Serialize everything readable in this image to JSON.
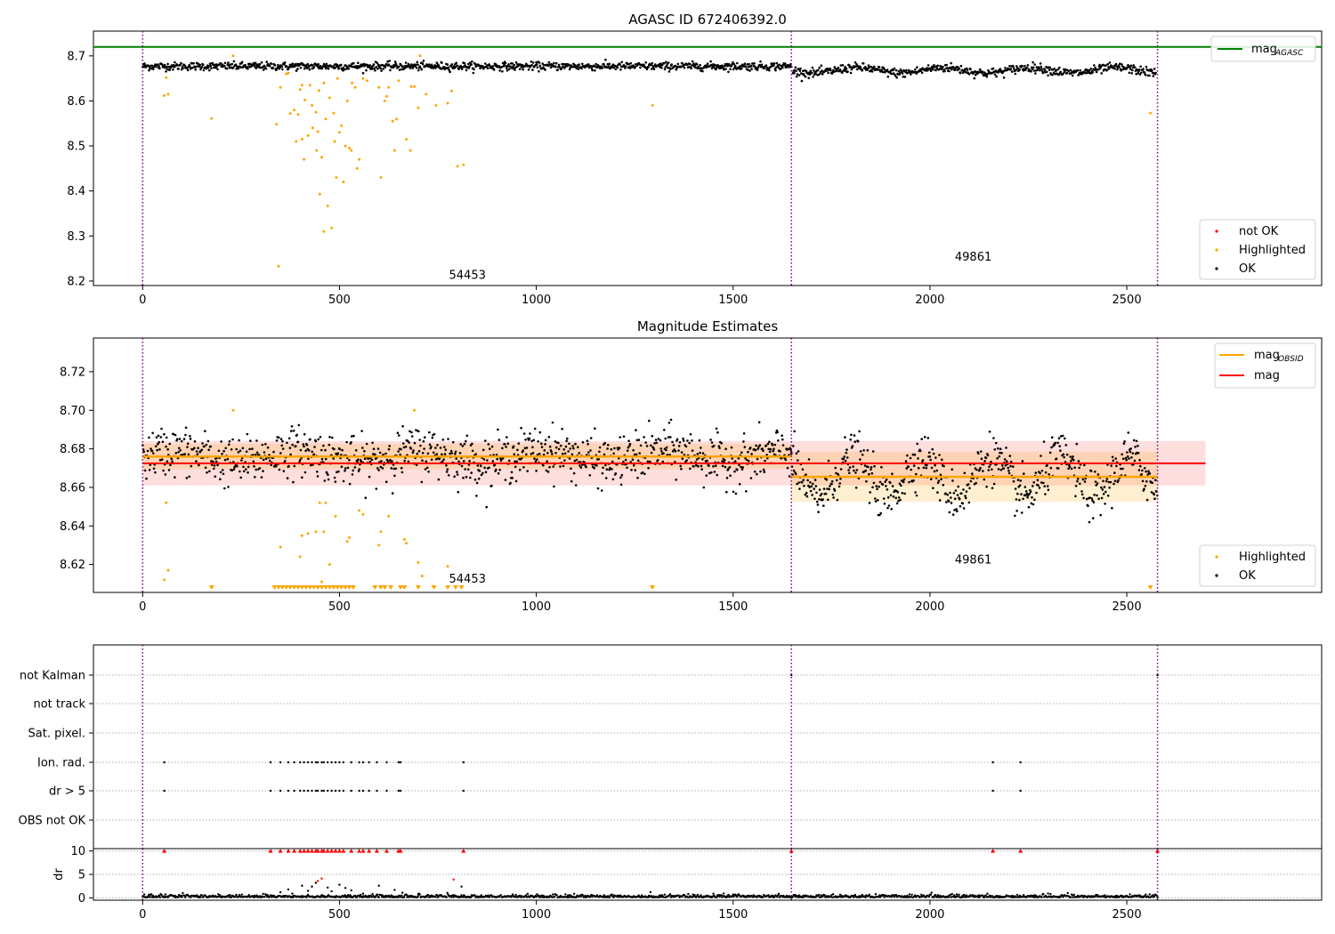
{
  "chart_data": [
    {
      "type": "scatter",
      "title": "AGASC ID 672406392.0",
      "xlim": [
        -125,
        2995
      ],
      "ylim": [
        8.19,
        8.755
      ],
      "xticks": [
        0,
        500,
        1000,
        1500,
        2000,
        2500
      ],
      "yticks": [
        8.2,
        8.3,
        8.4,
        8.5,
        8.6,
        8.7
      ],
      "vlines": [
        0,
        1648,
        2578
      ],
      "hline": {
        "name": "mag_AGASC",
        "y": 8.72,
        "color": "#008000"
      },
      "legend_line": {
        "label": "mag",
        "subscript": "AGASC"
      },
      "legend_points": [
        {
          "label": "not OK",
          "color": "#ff0000"
        },
        {
          "label": "Highlighted",
          "color": "#ffa500"
        },
        {
          "label": "OK",
          "color": "#000000"
        }
      ],
      "annotations": [
        {
          "text": "54453",
          "x": 825,
          "y": 8.205
        },
        {
          "text": "49861",
          "x": 2110,
          "y": 8.245
        }
      ],
      "segments_ok": [
        {
          "x0": 0,
          "x1": 1648,
          "y": 8.677,
          "spread": 0.008
        },
        {
          "x0": 1652,
          "x1": 2575,
          "y": 8.668,
          "spread": 0.009
        }
      ],
      "highlighted": [
        [
          55,
          8.612
        ],
        [
          60,
          8.652
        ],
        [
          65,
          8.615
        ],
        [
          175,
          8.561
        ],
        [
          230,
          8.7
        ],
        [
          340,
          8.548
        ],
        [
          345,
          8.233
        ],
        [
          350,
          8.63
        ],
        [
          365,
          8.66
        ],
        [
          370,
          8.662
        ],
        [
          375,
          8.572
        ],
        [
          385,
          8.58
        ],
        [
          390,
          8.51
        ],
        [
          395,
          8.57
        ],
        [
          400,
          8.625
        ],
        [
          405,
          8.515
        ],
        [
          405,
          8.635
        ],
        [
          410,
          8.47
        ],
        [
          412,
          8.602
        ],
        [
          420,
          8.523
        ],
        [
          425,
          8.635
        ],
        [
          430,
          8.59
        ],
        [
          432,
          8.54
        ],
        [
          440,
          8.575
        ],
        [
          442,
          8.49
        ],
        [
          445,
          8.532
        ],
        [
          448,
          8.623
        ],
        [
          450,
          8.393
        ],
        [
          455,
          8.475
        ],
        [
          460,
          8.64
        ],
        [
          460,
          8.31
        ],
        [
          465,
          8.56
        ],
        [
          470,
          8.367
        ],
        [
          475,
          8.607
        ],
        [
          480,
          8.318
        ],
        [
          485,
          8.573
        ],
        [
          488,
          8.51
        ],
        [
          492,
          8.43
        ],
        [
          495,
          8.65
        ],
        [
          500,
          8.53
        ],
        [
          505,
          8.545
        ],
        [
          510,
          8.42
        ],
        [
          515,
          8.5
        ],
        [
          520,
          8.6
        ],
        [
          525,
          8.495
        ],
        [
          530,
          8.49
        ],
        [
          532,
          8.64
        ],
        [
          540,
          8.63
        ],
        [
          545,
          8.45
        ],
        [
          550,
          8.47
        ],
        [
          560,
          8.65
        ],
        [
          570,
          8.645
        ],
        [
          600,
          8.63
        ],
        [
          605,
          8.43
        ],
        [
          615,
          8.6
        ],
        [
          620,
          8.61
        ],
        [
          625,
          8.63
        ],
        [
          635,
          8.555
        ],
        [
          640,
          8.49
        ],
        [
          645,
          8.56
        ],
        [
          650,
          8.645
        ],
        [
          670,
          8.515
        ],
        [
          680,
          8.49
        ],
        [
          682,
          8.632
        ],
        [
          690,
          8.632
        ],
        [
          700,
          8.585
        ],
        [
          705,
          8.7
        ],
        [
          720,
          8.615
        ],
        [
          745,
          8.59
        ],
        [
          775,
          8.595
        ],
        [
          785,
          8.622
        ],
        [
          800,
          8.455
        ],
        [
          815,
          8.458
        ],
        [
          1295,
          8.59
        ],
        [
          2560,
          8.573
        ]
      ]
    },
    {
      "type": "scatter",
      "title": "Magnitude Estimates",
      "xlim": [
        -125,
        2995
      ],
      "ylim": [
        8.6055,
        8.7375
      ],
      "xticks": [
        0,
        500,
        1000,
        1500,
        2000,
        2500
      ],
      "yticks": [
        8.62,
        8.64,
        8.66,
        8.68,
        8.7,
        8.72
      ],
      "vlines": [
        0,
        1648,
        2578
      ],
      "mag": {
        "label": "mag",
        "y": 8.6725,
        "lower": 8.661,
        "upper": 8.684,
        "x0": 0,
        "x1": 2700,
        "color": "#ff0000"
      },
      "mag_obsid": [
        {
          "x0": 0,
          "x1": 1648,
          "y": 8.676,
          "lower": 8.6695,
          "upper": 8.6825
        },
        {
          "x0": 1648,
          "x1": 2578,
          "y": 8.6655,
          "lower": 8.6525,
          "upper": 8.6785
        }
      ],
      "legend_lines": [
        {
          "label": "mag",
          "subscript": "OBSID",
          "color": "#ffa500"
        },
        {
          "label": "mag",
          "subscript": "",
          "color": "#ff0000"
        }
      ],
      "legend_points": [
        {
          "label": "Highlighted",
          "color": "#ffa500"
        },
        {
          "label": "OK",
          "color": "#000000"
        }
      ],
      "annotations": [
        {
          "text": "54453",
          "x": 825,
          "y": 8.6105
        },
        {
          "text": "49861",
          "x": 2110,
          "y": 8.6205
        }
      ],
      "highlighted": [
        [
          55,
          8.612
        ],
        [
          60,
          8.652
        ],
        [
          65,
          8.617
        ],
        [
          230,
          8.7
        ],
        [
          350,
          8.629
        ],
        [
          400,
          8.624
        ],
        [
          405,
          8.635
        ],
        [
          420,
          8.636
        ],
        [
          440,
          8.637
        ],
        [
          450,
          8.652
        ],
        [
          455,
          8.611
        ],
        [
          460,
          8.637
        ],
        [
          465,
          8.652
        ],
        [
          475,
          8.62
        ],
        [
          490,
          8.645
        ],
        [
          520,
          8.632
        ],
        [
          525,
          8.634
        ],
        [
          550,
          8.648
        ],
        [
          560,
          8.646
        ],
        [
          600,
          8.63
        ],
        [
          605,
          8.637
        ],
        [
          625,
          8.645
        ],
        [
          665,
          8.633
        ],
        [
          670,
          8.631
        ],
        [
          690,
          8.7
        ],
        [
          700,
          8.621
        ],
        [
          710,
          8.614
        ],
        [
          775,
          8.619
        ]
      ],
      "below_range_x": [
        175,
        335,
        345,
        355,
        365,
        375,
        385,
        395,
        405,
        415,
        425,
        435,
        445,
        455,
        465,
        475,
        485,
        495,
        505,
        515,
        525,
        535,
        590,
        605,
        615,
        630,
        655,
        665,
        700,
        740,
        775,
        795,
        810,
        1295,
        2560
      ]
    },
    {
      "type": "scatter",
      "title": "",
      "xlim": [
        -125,
        2995
      ],
      "xticks": [
        0,
        500,
        1000,
        1500,
        2000,
        2500
      ],
      "vlines": [
        0,
        1648,
        2578
      ],
      "flag_rows": [
        "not Kalman",
        "not track",
        "Sat. pixel.",
        "Ion. rad.",
        "dr > 5",
        "OBS not OK"
      ],
      "flag_points": [
        {
          "row": "Ion. rad.",
          "x": [
            55,
            325,
            350,
            370,
            385,
            400,
            410,
            420,
            430,
            440,
            445,
            455,
            460,
            470,
            480,
            490,
            500,
            510,
            530,
            550,
            560,
            575,
            595,
            620,
            650,
            655,
            815,
            2160,
            2230
          ]
        },
        {
          "row": "dr > 5",
          "x": [
            55,
            325,
            350,
            370,
            385,
            400,
            410,
            420,
            430,
            440,
            445,
            455,
            460,
            470,
            480,
            490,
            500,
            510,
            530,
            550,
            560,
            575,
            595,
            620,
            650,
            655,
            815,
            2160,
            2230
          ]
        },
        {
          "row": "not Kalman",
          "x": [
            1648,
            2578
          ]
        }
      ],
      "dr_ylabel": "dr",
      "dr_ylim": [
        -0.5,
        10.5
      ],
      "dr_yticks": [
        0,
        5,
        10
      ],
      "dr_clipped_x": [
        55,
        325,
        350,
        370,
        385,
        400,
        410,
        420,
        430,
        440,
        445,
        455,
        460,
        470,
        480,
        490,
        500,
        510,
        530,
        550,
        560,
        575,
        595,
        620,
        650,
        655,
        815,
        1648,
        2160,
        2230,
        2578
      ],
      "dr_outliers": [
        [
          350,
          1.2
        ],
        [
          370,
          1.8
        ],
        [
          380,
          0.9
        ],
        [
          405,
          2.6
        ],
        [
          420,
          1.5
        ],
        [
          430,
          2.4
        ],
        [
          440,
          3.2
        ],
        [
          445,
          3.6
        ],
        [
          455,
          4.1
        ],
        [
          470,
          2.2
        ],
        [
          480,
          1.4
        ],
        [
          500,
          2.8
        ],
        [
          515,
          2.1
        ],
        [
          530,
          1.6
        ],
        [
          560,
          0.9
        ],
        [
          600,
          2.6
        ],
        [
          640,
          1.7
        ],
        [
          660,
          1.1
        ],
        [
          700,
          0.8
        ],
        [
          790,
          3.9
        ],
        [
          810,
          2.4
        ],
        [
          1290,
          1.2
        ]
      ]
    }
  ]
}
